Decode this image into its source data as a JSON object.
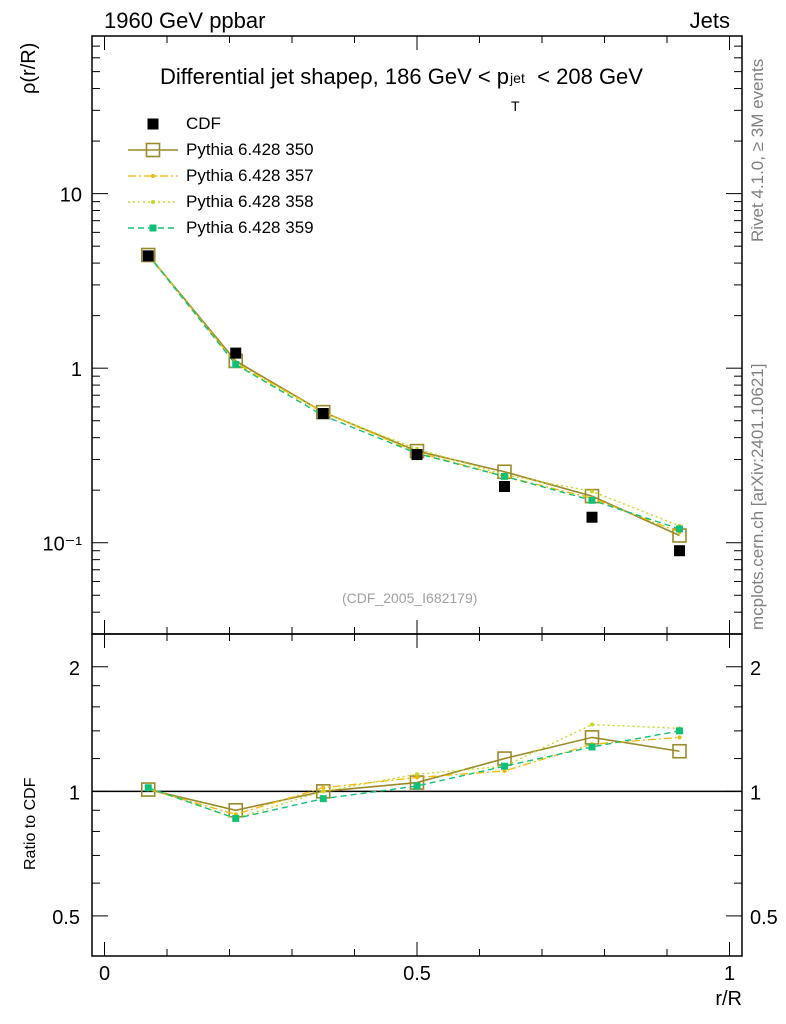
{
  "header": {
    "left": "1960 GeV ppbar",
    "right": "Jets"
  },
  "title": {
    "main": "Differential jet shapeρ, 186 GeV < p",
    "sup": "jet",
    "sub": "T",
    "tail": " < 208 GeV"
  },
  "side_labels": {
    "rivet": "Rivet 4.1.0, ≥ 3M events",
    "mcplots": "mcplots.cern.ch [arXiv:2401.10621]"
  },
  "watermark": "(CDF_2005_I682179)",
  "legend": [
    {
      "label": "CDF"
    },
    {
      "label": "Pythia 6.428 350"
    },
    {
      "label": "Pythia 6.428 357"
    },
    {
      "label": "Pythia 6.428 358"
    },
    {
      "label": "Pythia 6.428 359"
    }
  ],
  "colors": {
    "cdf": "#000000",
    "p350": "#9a8a2a",
    "p357": "#f0b800",
    "p358": "#c8d820",
    "p359": "#10c078"
  },
  "chart_data": {
    "type": "line",
    "x": [
      0.07,
      0.21,
      0.35,
      0.5,
      0.64,
      0.78,
      0.92
    ],
    "xlabel": "r/R",
    "ylabel": "ρ(r/R)",
    "ratio_ylabel": "Ratio to CDF",
    "xlim": [
      -0.02,
      1.02
    ],
    "ylim_main": [
      0.03,
      80
    ],
    "ylim_ratio": [
      0.4,
      2.4
    ],
    "x_ticks": [
      "0",
      "0.5",
      "1"
    ],
    "y_ticks_main": [
      "10⁻¹",
      "1",
      "10"
    ],
    "y_ticks_ratio": [
      "0.5",
      "1",
      "2"
    ],
    "series": [
      {
        "name": "CDF",
        "values": [
          4.4,
          1.22,
          0.55,
          0.32,
          0.21,
          0.14,
          0.09
        ],
        "ratio": [
          1.0,
          1.0,
          1.0,
          1.0,
          1.0,
          1.0,
          1.0
        ]
      },
      {
        "name": "Pythia 6.428 350",
        "values": [
          4.45,
          1.1,
          0.56,
          0.335,
          0.255,
          0.185,
          0.11
        ],
        "ratio": [
          1.01,
          0.9,
          1.0,
          1.05,
          1.2,
          1.35,
          1.25
        ]
      },
      {
        "name": "Pythia 6.428 357",
        "values": [
          4.45,
          1.07,
          0.56,
          0.33,
          0.24,
          0.18,
          0.115
        ],
        "ratio": [
          1.01,
          0.88,
          1.02,
          1.08,
          1.12,
          1.3,
          1.35
        ]
      },
      {
        "name": "Pythia 6.428 358",
        "values": [
          4.5,
          1.05,
          0.555,
          0.345,
          0.245,
          0.197,
          0.125
        ],
        "ratio": [
          1.02,
          0.86,
          1.0,
          1.1,
          1.15,
          1.45,
          1.42
        ]
      },
      {
        "name": "Pythia 6.428 359",
        "values": [
          4.45,
          1.05,
          0.535,
          0.325,
          0.24,
          0.175,
          0.12
        ],
        "ratio": [
          1.02,
          0.86,
          0.96,
          1.03,
          1.15,
          1.28,
          1.4
        ]
      }
    ]
  }
}
